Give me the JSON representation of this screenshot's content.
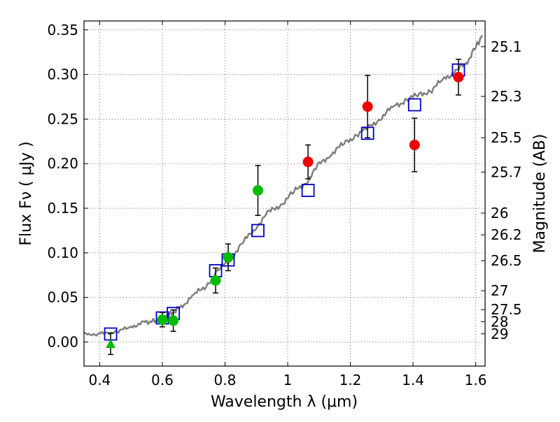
{
  "chart_data": {
    "type": "scatter",
    "xlabel": "Wavelength  λ (μm)",
    "ylabel": "Flux  Fν  ( μJy )",
    "y2label": "Magnitude (AB)",
    "xlim": [
      0.35,
      1.63
    ],
    "ylim": [
      -0.027,
      0.36
    ],
    "grid": true,
    "x_ticks": [
      0.4,
      0.6,
      0.8,
      1.0,
      1.2,
      1.4,
      1.6
    ],
    "x_tick_labels": [
      "0.4",
      "0.6",
      "0.8",
      "1",
      "1.2",
      "1.4",
      "1.6"
    ],
    "y_ticks": [
      0.0,
      0.05,
      0.1,
      0.15,
      0.2,
      0.25,
      0.3,
      0.35
    ],
    "y_tick_labels": [
      "0.00",
      "0.05",
      "0.10",
      "0.15",
      "0.20",
      "0.25",
      "0.30",
      "0.35"
    ],
    "y2_tick_labels": [
      "25.1",
      "25.3",
      "25.5",
      "25.7",
      "26",
      "26.2",
      "26.5",
      "27",
      "27.5",
      "28",
      "29"
    ],
    "colors": {
      "model": "#7f7f7f",
      "green_points": "#00bb00",
      "red_points": "#ee0000",
      "model_boxes": "#0000cc",
      "errorbars": "#000000"
    },
    "model_spectrum": {
      "x": [
        0.35,
        0.39,
        0.42,
        0.46,
        0.5,
        0.54,
        0.56,
        0.58,
        0.6,
        0.62,
        0.64,
        0.66,
        0.7,
        0.74,
        0.78,
        0.82,
        0.86,
        0.9,
        0.94,
        0.98,
        1.02,
        1.06,
        1.1,
        1.14,
        1.18,
        1.22,
        1.26,
        1.3,
        1.34,
        1.38,
        1.42,
        1.46,
        1.5,
        1.54,
        1.57,
        1.6,
        1.62
      ],
      "y": [
        0.009,
        0.009,
        0.01,
        0.012,
        0.017,
        0.022,
        0.023,
        0.024,
        0.026,
        0.03,
        0.035,
        0.04,
        0.052,
        0.064,
        0.08,
        0.095,
        0.112,
        0.13,
        0.145,
        0.155,
        0.168,
        0.18,
        0.198,
        0.212,
        0.222,
        0.233,
        0.24,
        0.253,
        0.264,
        0.272,
        0.277,
        0.283,
        0.295,
        0.305,
        0.313,
        0.33,
        0.344
      ]
    },
    "green_points": [
      {
        "x": 0.6,
        "y": 0.025,
        "yerr": 0.008
      },
      {
        "x": 0.635,
        "y": 0.024,
        "yerr": 0.012
      },
      {
        "x": 0.77,
        "y": 0.069,
        "yerr": 0.014
      },
      {
        "x": 0.81,
        "y": 0.095,
        "yerr": 0.015
      },
      {
        "x": 0.905,
        "y": 0.17,
        "yerr": 0.028
      }
    ],
    "green_upper_limit": {
      "x": 0.435,
      "y": -0.002,
      "yerr": 0.012
    },
    "red_points": [
      {
        "x": 1.065,
        "y": 0.202,
        "yerr": 0.019
      },
      {
        "x": 1.255,
        "y": 0.264,
        "yerr": 0.035
      },
      {
        "x": 1.405,
        "y": 0.221,
        "yerr": 0.03
      },
      {
        "x": 1.545,
        "y": 0.297,
        "yerr": 0.02
      }
    ],
    "model_boxes": [
      {
        "x": 0.435,
        "y": 0.009
      },
      {
        "x": 0.6,
        "y": 0.027
      },
      {
        "x": 0.635,
        "y": 0.032
      },
      {
        "x": 0.77,
        "y": 0.08
      },
      {
        "x": 0.81,
        "y": 0.092
      },
      {
        "x": 0.905,
        "y": 0.125
      },
      {
        "x": 1.065,
        "y": 0.17
      },
      {
        "x": 1.255,
        "y": 0.234
      },
      {
        "x": 1.405,
        "y": 0.266
      },
      {
        "x": 1.545,
        "y": 0.305
      }
    ]
  }
}
